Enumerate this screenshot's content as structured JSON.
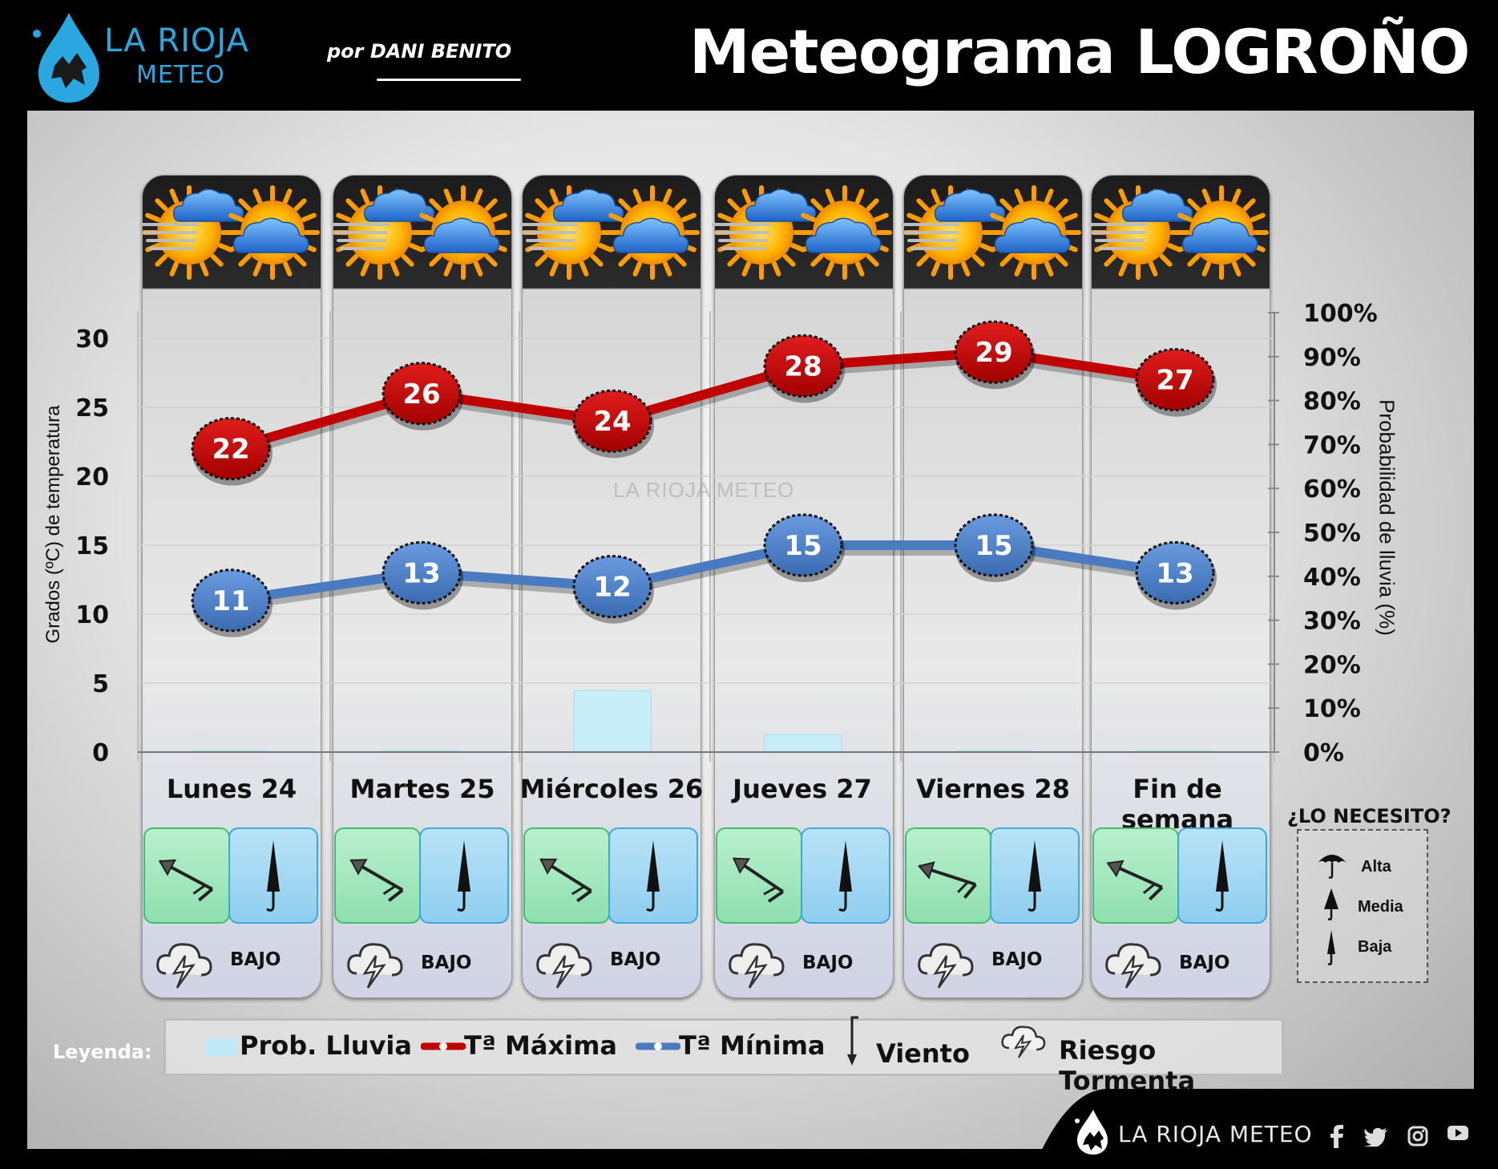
{
  "header": {
    "logo_line1": "LA RIOJA",
    "logo_line2": "METEO",
    "byline": "por DANI BENITO",
    "title": "Meteograma LOGROÑO"
  },
  "chart_data": {
    "type": "line",
    "categories": [
      "Lunes 24",
      "Martes 25",
      "Miércoles 26",
      "Jueves 27",
      "Viernes 28",
      "Fin de semana"
    ],
    "series": [
      {
        "name": "Tª Máxima",
        "values": [
          22,
          26,
          24,
          28,
          29,
          27
        ],
        "color": "#c00000"
      },
      {
        "name": "Tª Mínima",
        "values": [
          11,
          13,
          12,
          15,
          15,
          13
        ],
        "color": "#4a7bc0"
      },
      {
        "name": "Prob. Lluvia",
        "values": [
          0,
          0,
          14,
          4,
          0,
          0
        ],
        "color": "#c8eefa",
        "axis": "right",
        "type": "bar"
      }
    ],
    "ylabel": "Grados (ºC) de temperatura",
    "y2label": "Probabilidad de lluvia (%)",
    "ylim": [
      0,
      32
    ],
    "y2lim": [
      0,
      100
    ],
    "yticks": [
      0,
      5,
      10,
      15,
      20,
      25,
      30
    ],
    "y2ticks": [
      "0%",
      "10%",
      "20%",
      "30%",
      "40%",
      "50%",
      "60%",
      "70%",
      "80%",
      "90%",
      "100%"
    ],
    "watermark": "LA RIOJA METEO"
  },
  "days": [
    {
      "label": "Lunes 24",
      "storm_risk": "BAJO",
      "umbrella": "Baja"
    },
    {
      "label": "Martes 25",
      "storm_risk": "BAJO",
      "umbrella": "Baja"
    },
    {
      "label": "Miércoles 26",
      "storm_risk": "BAJO",
      "umbrella": "Baja"
    },
    {
      "label": "Jueves 27",
      "storm_risk": "BAJO",
      "umbrella": "Baja"
    },
    {
      "label": "Viernes 28",
      "storm_risk": "BAJO",
      "umbrella": "Baja"
    },
    {
      "label": "Fin de semana",
      "storm_risk": "BAJO",
      "umbrella": "Baja"
    }
  ],
  "need_box": {
    "title": "¿LO NECESITO?",
    "levels": [
      "Alta",
      "Media",
      "Baja"
    ]
  },
  "legend": {
    "label": "Leyenda:",
    "items": [
      "Prob. Lluvia",
      "Tª Máxima",
      "Tª Mínima",
      "Viento",
      "Riesgo Tormenta"
    ]
  },
  "footer": {
    "brand": "LA RIOJA METEO",
    "social": [
      "facebook-icon",
      "twitter-icon",
      "instagram-icon",
      "youtube-icon"
    ]
  }
}
